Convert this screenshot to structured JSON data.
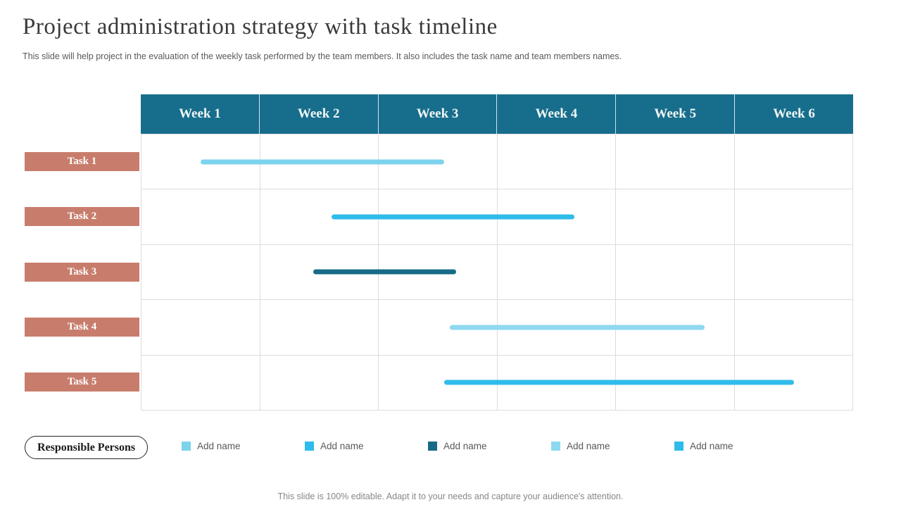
{
  "header": {
    "title": "Project administration strategy with task timeline",
    "subtitle": "This slide will help project in the evaluation of the weekly task performed by the team members. It also includes the task name and team members names."
  },
  "chart_data": {
    "type": "gantt",
    "categories": [
      "Week 1",
      "Week 2",
      "Week 3",
      "Week 4",
      "Week 5",
      "Week 6"
    ],
    "x_range_weeks": [
      0,
      6
    ],
    "grid": true,
    "header_color": "#176d8c",
    "task_label_color": "#c87d6c",
    "tasks": [
      {
        "name": "Task 1",
        "start_week": 0.5,
        "end_week": 2.55,
        "bar_color": "#7dd3ec"
      },
      {
        "name": "Task 2",
        "start_week": 1.6,
        "end_week": 3.65,
        "bar_color": "#2fbcea"
      },
      {
        "name": "Task 3",
        "start_week": 1.45,
        "end_week": 2.65,
        "bar_color": "#176b87"
      },
      {
        "name": "Task 4",
        "start_week": 2.6,
        "end_week": 4.75,
        "bar_color": "#8ed8f0"
      },
      {
        "name": "Task 5",
        "start_week": 2.55,
        "end_week": 5.5,
        "bar_color": "#2fbcea"
      }
    ]
  },
  "legend": {
    "title": "Responsible Persons",
    "items": [
      {
        "label": "Add name",
        "color": "#7dd3ec"
      },
      {
        "label": "Add name",
        "color": "#2fbcea"
      },
      {
        "label": "Add name",
        "color": "#176b87"
      },
      {
        "label": "Add name",
        "color": "#8ed8f0"
      },
      {
        "label": "Add name",
        "color": "#2fbcea"
      }
    ]
  },
  "footer": {
    "note": "This slide is 100% editable. Adapt it to your needs and capture your audience's attention."
  }
}
